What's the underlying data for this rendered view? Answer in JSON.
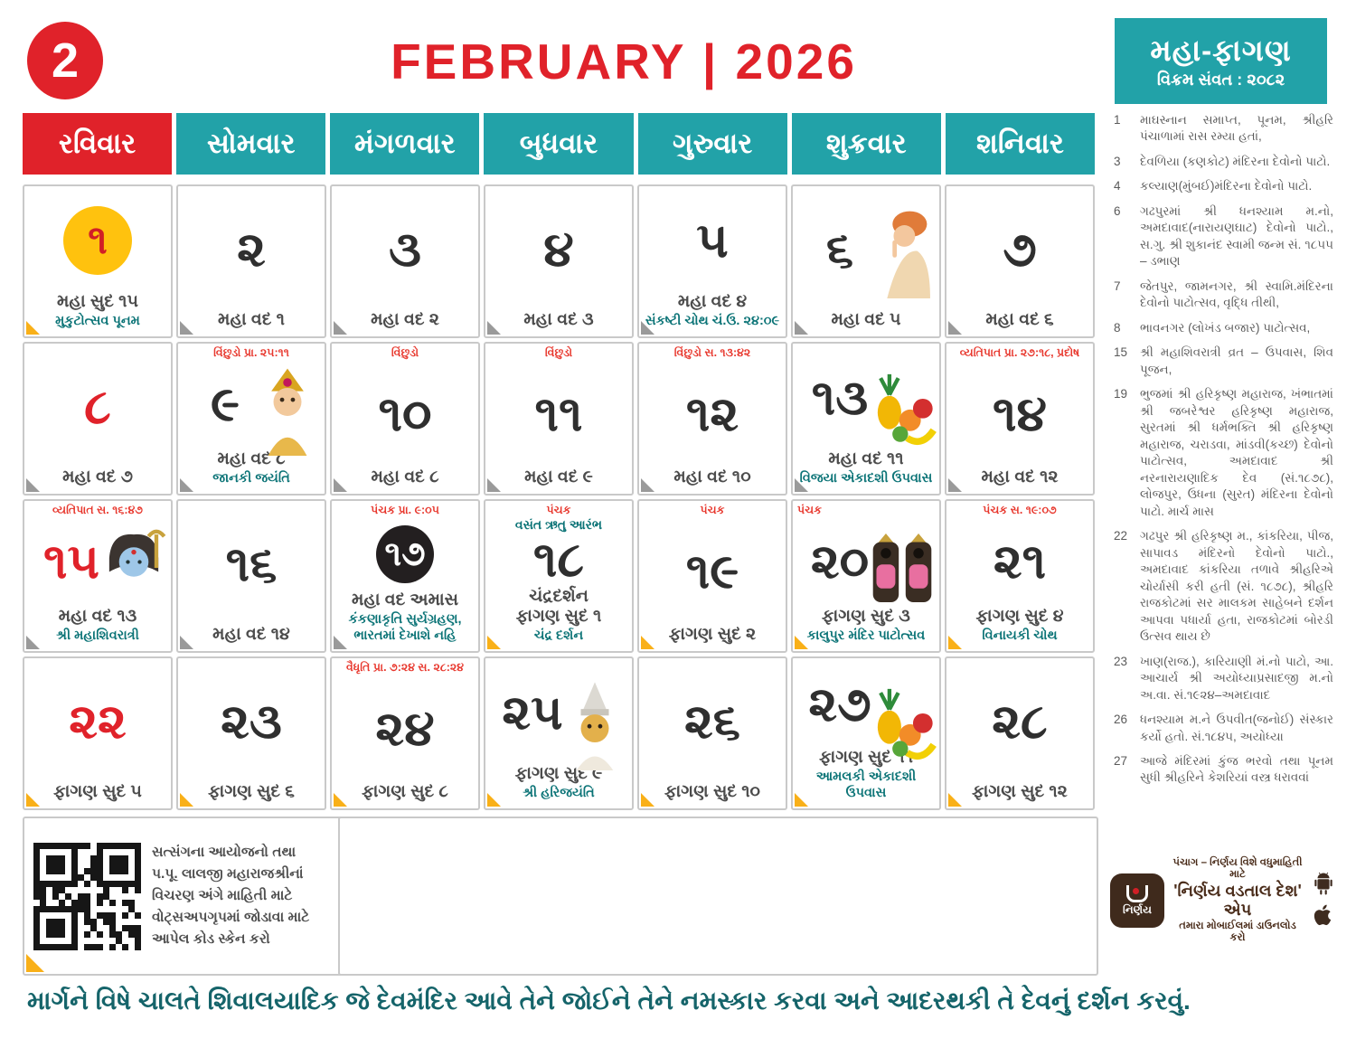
{
  "header": {
    "month_number": "2",
    "title": "FEBRUARY | 2026",
    "month_box": {
      "title": "મહા-ફાગણ",
      "subtitle": "વિક્રમ સંવત : ૨૦૮૨"
    }
  },
  "colors": {
    "accent_red": "#e0222a",
    "teal": "#22a2a8",
    "festival_teal": "#0c7477",
    "fold_yellow": "#f9b018",
    "fold_gray": "#9a9a9a",
    "punam_yellow": "#ffc20e",
    "amas_black": "#231f20",
    "app_brown": "#3f2a1c",
    "footer_teal": "#15646a"
  },
  "day_headers": [
    {
      "label": "રવિવાર",
      "type": "sunday"
    },
    {
      "label": "સોમવાર",
      "type": "weekday"
    },
    {
      "label": "મંગળવાર",
      "type": "weekday"
    },
    {
      "label": "બુધવાર",
      "type": "weekday"
    },
    {
      "label": "ગુરુવાર",
      "type": "weekday"
    },
    {
      "label": "શુક્રવાર",
      "type": "weekday"
    },
    {
      "label": "શનિવાર",
      "type": "weekday"
    }
  ],
  "calendar": {
    "days": [
      {
        "num": "૧",
        "variant": "punam",
        "tithi": "મહા સુદ ૧૫",
        "festival": "મુકુટોત્સવ પૂનમ",
        "fold": "yellow"
      },
      {
        "num": "૨",
        "tithi": "મહા વદ ૧",
        "fold": "gray"
      },
      {
        "num": "૩",
        "tithi": "મહા વદ ૨",
        "fold": "gray"
      },
      {
        "num": "૪",
        "tithi": "મહા વદ ૩",
        "fold": "gray"
      },
      {
        "num": "૫",
        "tithi": "મહા વદ ૪",
        "festival": "સંકષ્ટી ચોથ ચં.ઉ. ૨૪:૦૯",
        "fold": "gray"
      },
      {
        "num": "૬",
        "tithi": "મહા વદ ૫",
        "image": "saint",
        "fold": "gray"
      },
      {
        "num": "૭",
        "tithi": "મહા વદ ૬",
        "fold": "gray"
      },
      {
        "num": "૮",
        "variant": "red",
        "tithi": "મહા વદ ૭",
        "fold": "gray"
      },
      {
        "top": "વિંછુડો પ્રા. ૨૫:૧૧",
        "num": "૯",
        "tithi": "મહા વદ ૮",
        "festival": "જાનકી જયંતિ",
        "image": "goddess",
        "fold": "gray"
      },
      {
        "top": "વિંછુડો",
        "num": "૧૦",
        "tithi": "મહા વદ ૮",
        "fold": "gray"
      },
      {
        "top": "વિંછુડો",
        "num": "૧૧",
        "tithi": "મહા વદ ૯",
        "fold": "gray"
      },
      {
        "top": "વિંછુડો સ. ૧૩:૪૨",
        "num": "૧૨",
        "tithi": "મહા વદ ૧૦",
        "fold": "gray"
      },
      {
        "num": "૧૩",
        "tithi": "મહા વદ ૧૧",
        "festival": "વિજયા એકાદશી ઉપવાસ",
        "image": "fruits",
        "fold": "gray"
      },
      {
        "top": "વ્યતિપાત પ્રા. ૨૭:૧૮, પ્રદોષ",
        "num": "૧૪",
        "tithi": "મહા વદ ૧૨",
        "fold": "gray"
      },
      {
        "top": "વ્યતિપાત સ. ૧૬:૪૭",
        "num": "૧૫",
        "variant": "red",
        "tithi": "મહા વદ ૧૩",
        "festival": "શ્રી મહાશિવરાત્રી",
        "image": "shiva",
        "fold": "gray"
      },
      {
        "num": "૧૬",
        "tithi": "મહા વદ ૧૪",
        "fold": "gray"
      },
      {
        "top": "પંચક પ્રા. ૯:૦૫",
        "num": "૧૭",
        "variant": "amas",
        "tithi": "મહા વદ અમાસ",
        "festival": "કંકણાકૃતિ સુર્યગ્રહણ,\nભારતમાં દેખાશે નહિ",
        "fold": "gray"
      },
      {
        "top": "પંચક",
        "teal_top": "વસંત ઋતુ આરંભ",
        "num": "૧૮",
        "tithi": "ચંદ્રદર્શન\nફાગણ સુદ ૧",
        "festival": "ચંદ્ર દર્શન",
        "fold": "yellow"
      },
      {
        "top": "પંચક",
        "num": "૧૯",
        "tithi": "ફાગણ સુદ ૨",
        "fold": "yellow"
      },
      {
        "top": "પંચક",
        "top_align": "left",
        "num": "૨૦",
        "tithi": "ફાગણ સુદ ૩",
        "festival": "કાલુપુર મંદિર પાટોત્સવ",
        "image": "idols",
        "fold": "yellow"
      },
      {
        "top": "પંચક સ. ૧૯:૦૭",
        "num": "૨૧",
        "tithi": "ફાગણ સુદ ૪",
        "festival": "વિનાયકી ચોથ",
        "fold": "yellow"
      },
      {
        "num": "૨૨",
        "variant": "red",
        "tithi": "ફાગણ સુદ ૫",
        "fold": "yellow"
      },
      {
        "num": "૨૩",
        "tithi": "ફાગણ સુદ ૬",
        "fold": "yellow"
      },
      {
        "top": "વૈધૃતિ પ્રા. ૭:૨૪ સ. ૨૮:૨૪",
        "num": "૨૪",
        "tithi": "ફાગણ સુદ ૮",
        "fold": "yellow"
      },
      {
        "num": "૨૫",
        "tithi": "ફાગણ સુદ ૯",
        "festival": "શ્રી હરિજયંતિ",
        "image": "crowned_deity",
        "fold": "yellow"
      },
      {
        "num": "૨૬",
        "tithi": "ફાગણ સુદ ૧૦",
        "fold": "yellow"
      },
      {
        "num": "૨૭",
        "tithi": "ફાગણ સુદ ૧૧",
        "festival": "આમલકી એકાદશી ઉપવાસ",
        "image": "fruits",
        "fold": "yellow"
      },
      {
        "num": "૨૮",
        "tithi": "ફાગણ સુદ ૧૨",
        "fold": "yellow"
      }
    ]
  },
  "notes": [
    {
      "day": "1",
      "text": "માઘસ્નાન સમાપ્ત, પૂનમ, શ્રીહરિ પંચાળામાં રાસ રમ્યા હતાં,"
    },
    {
      "day": "3",
      "text": "દેવળિયા (કણકોટ) મંદિરના દેવોનો પાટો."
    },
    {
      "day": "4",
      "text": "કલ્યાણ(મુંબઈ)મંદિરના દેવોનો પાટો."
    },
    {
      "day": "6",
      "text": "ગઢપુરમાં શ્રી ધનશ્યામ મ.નો, અમદાવાદ(નારાયણઘાટ) દેવોનો પાટો., સ.ગુ. શ્રી શુકાનંદ સ્વામી જન્મ સં. ૧૮૫૫ – ડભાણ"
    },
    {
      "day": "7",
      "text": "જેતપુર, જામનગર, શ્રી સ્વામિ.મંદિરના દેવોનો પાટોત્સવ, વૃદ્ધિ તીથી,"
    },
    {
      "day": "8",
      "text": "ભાવનગર (લોખંડ બજાર) પાટોત્સવ,"
    },
    {
      "day": "15",
      "text": "શ્રી મહાશિવરાત્રી વ્રત – ઉપવાસ, શિવ પૂજન,"
    },
    {
      "day": "19",
      "text": "ભુજમાં શ્રી હરિકૃષ્ણ મહારાજ, ખંભાતમાં શ્રી જબરેશ્વર હરિકૃષ્ણ મહારાજ, સુરતમાં શ્રી ધર્મભક્તિ શ્રી હરિકૃષ્ણ મહારાજ, ચરાડવા, માંડવી(કચ્છ) દેવોનો પાટોત્સવ, અમદાવાદ શ્રી નરનારાયણાદિક દેવ (સં.૧૮૭૮), લોજપુર, ઉધના (સુરત) મંદિરના દેવોનો પાટો. માર્ચ માસ"
    },
    {
      "day": "22",
      "text": "ગઢપુર શ્રી હરિકૃષ્ણ મ., કાંકરિયા, પીજ, સાપાવડ મંદિરનો દેવોનો પાટો., અમદાવાદ કાંકરિયા તળાવે શ્રીહરિએ ચોર્યાસી કરી હતી (સં. ૧૮૭૮), શ્રીહરિ રાજકોટમાં સર માલકમ સાહેબને દર્શન આપવા પધાર્યા હતા, રાજકોટમાં બોરડી ઉત્સવ થાય છે"
    },
    {
      "day": "23",
      "text": "ખાણ(રાજ.), કારિયાણી મં.નો પાટો, આ. આચાર્ય શ્રી અયોધ્યાપ્રસાદજી મ.નો અ.વા. સં.૧૯૨૪–અમદાવાદ"
    },
    {
      "day": "26",
      "text": "ધનશ્યામ મ.ને ઉપવીત(જનોઈ) સંસ્કાર કર્યો હતો. સં.૧૮૪૫, અયોધ્યા"
    },
    {
      "day": "27",
      "text": "આજે મંદિરમાં કુંજ ભરવો તથા પૂનમ સુધી શ્રીહરિને કેશરિયાં વસ્ત્ર ધરાવવાં"
    }
  ],
  "qr_section": {
    "text": "સત્સંગના આયોજનો તથા\nપ.પૂ. લાલજી મહારાજશ્રીનાં\nવિચરણ અંગે માહિતી માટે\nવોટ્સઅપગૃપમાં જોડાવા માટે\nઆપેલ કોડ સ્કેન કરો"
  },
  "app_section": {
    "icon_label": "નિર્ણય",
    "line1": "પંચાગ – નિર્ણય વિશે વધુમાહિતી માટે",
    "line2": "'નિર્ણય વડતાલ દેશ' એપ",
    "line3": "તમારા મોબાઈલમાં ડાઉનલોડ કરો"
  },
  "footer": {
    "text": "માર્ગને વિષે ચાલતે શિવાલયાદિક જે દેવમંદિર આવે તેને જોઈને તેને નમસ્કાર કરવા અને આદરથકી તે દેવનું દર્શન કરવું."
  }
}
